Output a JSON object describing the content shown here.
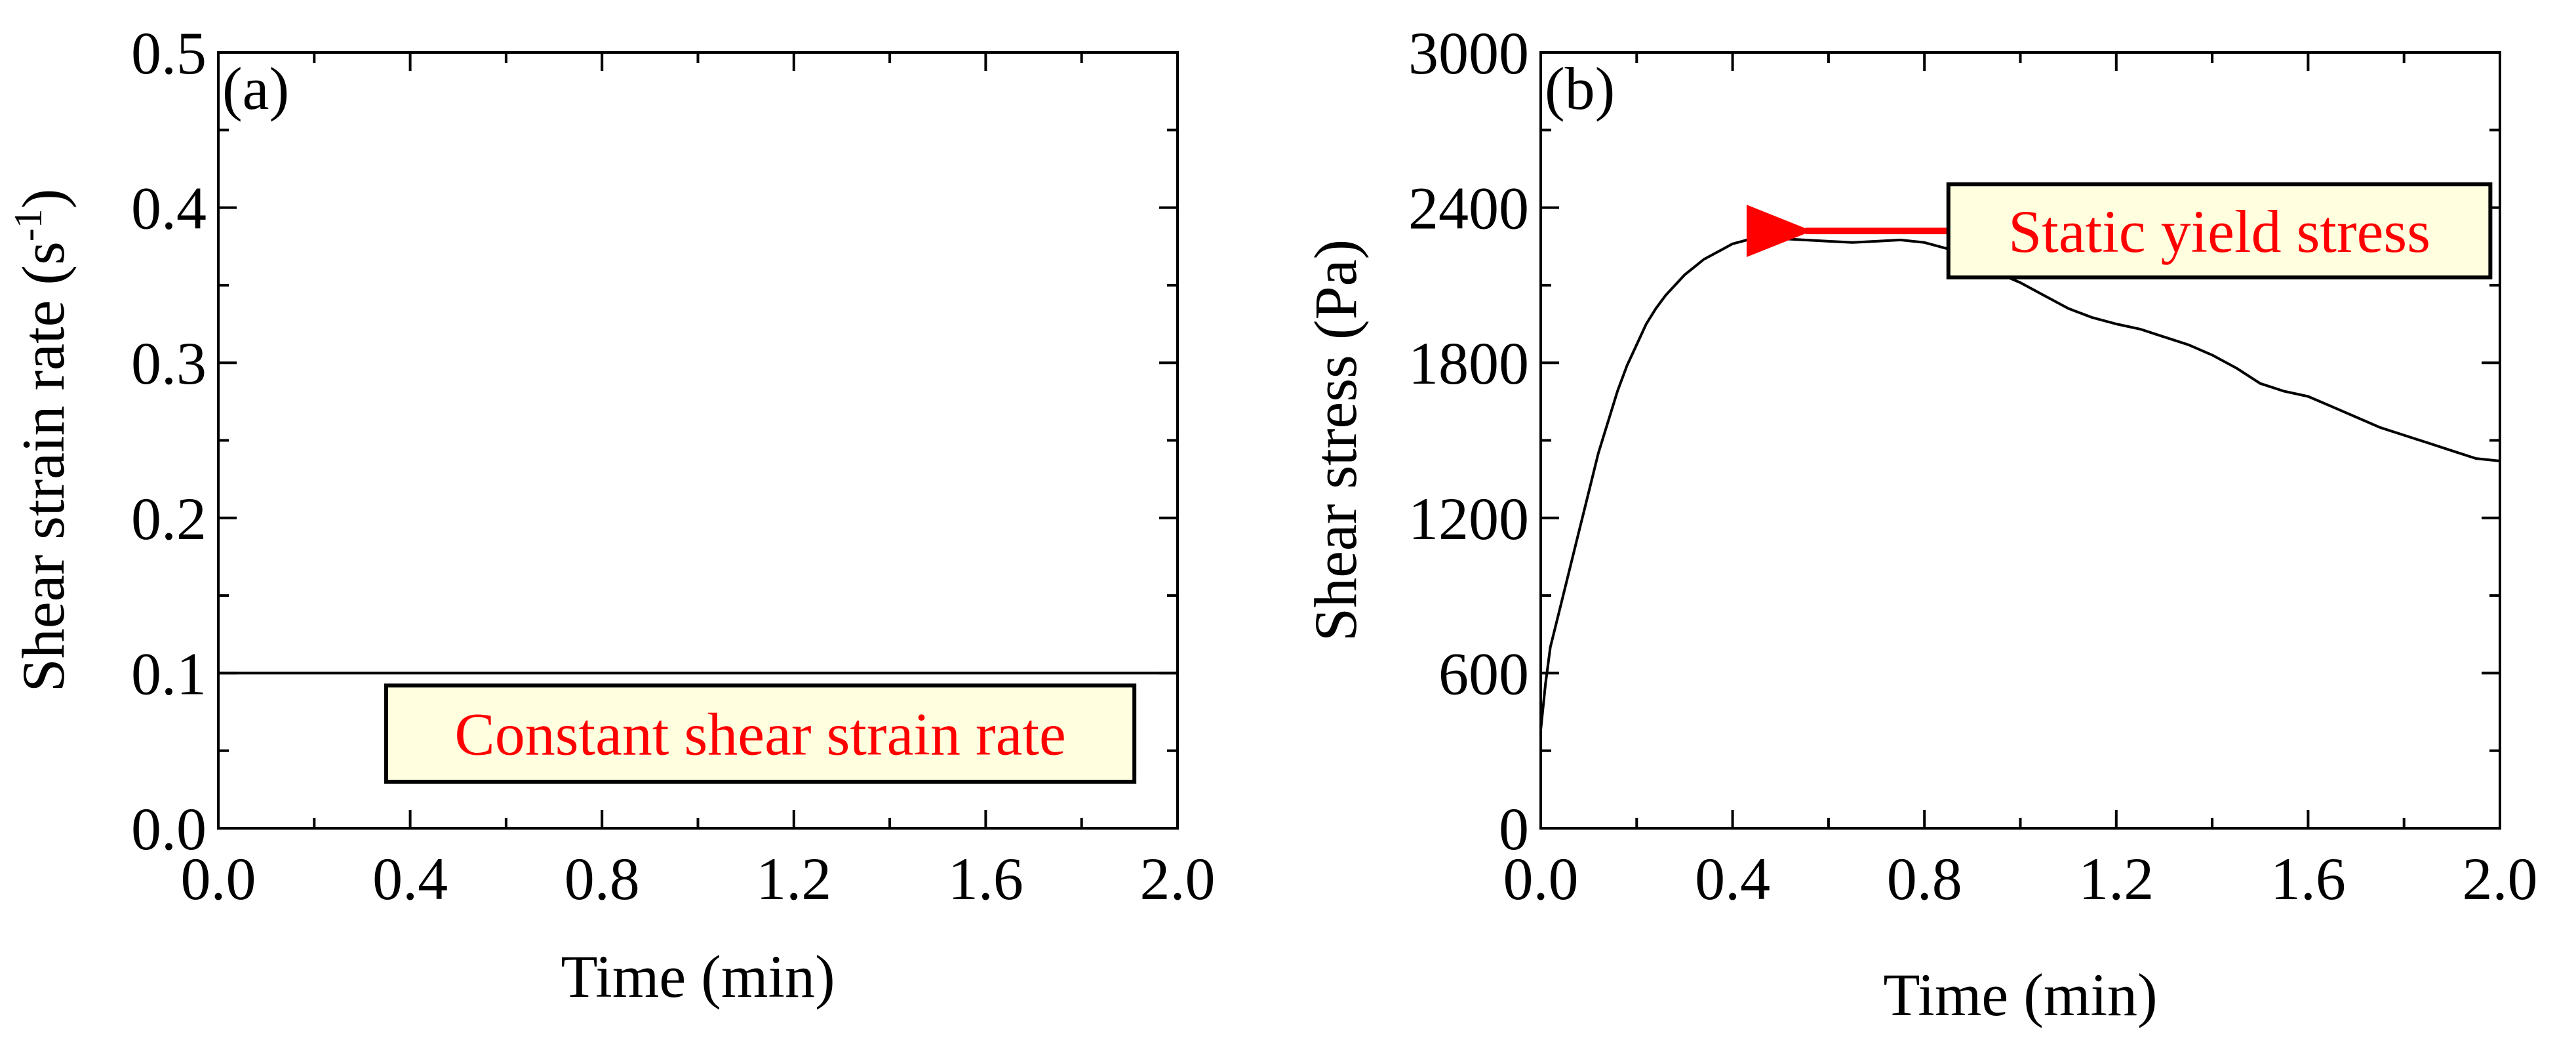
{
  "colors": {
    "axis": "#000000",
    "line": "#000000",
    "annotation_text": "#ff0000",
    "annotation_arrow": "#ff0000",
    "annotation_box_fill": "#ffffe0",
    "background": "#ffffff"
  },
  "chart_data": [
    {
      "type": "line",
      "panel_label": "(a)",
      "xlabel": "Time (min)",
      "ylabel": "Shear strain rate (s",
      "ylabel_superscript": "-1",
      "ylabel_suffix": ")",
      "xlim": [
        0.0,
        2.0
      ],
      "ylim": [
        0.0,
        0.5
      ],
      "xticks": [
        0.0,
        0.4,
        0.8,
        1.2,
        1.6,
        2.0
      ],
      "xtick_labels": [
        "0.0",
        "0.4",
        "0.8",
        "1.2",
        "1.6",
        "2.0"
      ],
      "yticks": [
        0.0,
        0.1,
        0.2,
        0.3,
        0.4,
        0.5
      ],
      "ytick_labels": [
        "0.0",
        "0.1",
        "0.2",
        "0.3",
        "0.4",
        "0.5"
      ],
      "grid": false,
      "series": [
        {
          "name": "Shear strain rate",
          "x": [
            0.0,
            2.0
          ],
          "y": [
            0.1,
            0.1
          ]
        }
      ],
      "annotation": {
        "text": "Constant shear strain rate",
        "x_range": [
          0.35,
          1.91
        ],
        "y_range": [
          0.03,
          0.092
        ]
      }
    },
    {
      "type": "line",
      "panel_label": "(b)",
      "xlabel": "Time (min)",
      "ylabel": "Shear stress (Pa)",
      "xlim": [
        0.0,
        2.0
      ],
      "ylim": [
        0,
        3000
      ],
      "xticks": [
        0.0,
        0.4,
        0.8,
        1.2,
        1.6,
        2.0
      ],
      "xtick_labels": [
        "0.0",
        "0.4",
        "0.8",
        "1.2",
        "1.6",
        "2.0"
      ],
      "yticks": [
        0,
        600,
        1200,
        1800,
        2400,
        3000
      ],
      "ytick_labels": [
        "0",
        "600",
        "1200",
        "1800",
        "2400",
        "3000"
      ],
      "grid": false,
      "series": [
        {
          "name": "Shear stress",
          "x": [
            0.0,
            0.01,
            0.02,
            0.04,
            0.06,
            0.08,
            0.1,
            0.12,
            0.14,
            0.16,
            0.18,
            0.2,
            0.22,
            0.24,
            0.26,
            0.28,
            0.3,
            0.32,
            0.34,
            0.36,
            0.38,
            0.4,
            0.42,
            0.44,
            0.46,
            0.48,
            0.5,
            0.55,
            0.6,
            0.65,
            0.7,
            0.75,
            0.8,
            0.85,
            0.9,
            0.95,
            1.0,
            1.05,
            1.1,
            1.15,
            1.2,
            1.25,
            1.3,
            1.35,
            1.4,
            1.45,
            1.5,
            1.55,
            1.6,
            1.65,
            1.7,
            1.75,
            1.8,
            1.85,
            1.9,
            1.95,
            2.0
          ],
          "y": [
            380,
            560,
            700,
            850,
            1000,
            1150,
            1300,
            1450,
            1570,
            1690,
            1790,
            1870,
            1950,
            2010,
            2060,
            2100,
            2140,
            2170,
            2200,
            2220,
            2240,
            2260,
            2270,
            2280,
            2290,
            2285,
            2280,
            2275,
            2270,
            2265,
            2270,
            2275,
            2265,
            2240,
            2200,
            2150,
            2110,
            2060,
            2010,
            1975,
            1950,
            1930,
            1900,
            1870,
            1830,
            1780,
            1720,
            1690,
            1670,
            1630,
            1590,
            1550,
            1520,
            1490,
            1460,
            1430,
            1420
          ]
        }
      ],
      "annotation": {
        "text": "Static yield stress",
        "arrow_from": [
          0.85,
          2310
        ],
        "arrow_to": [
          0.47,
          2310
        ],
        "x_range": [
          0.85,
          1.98
        ],
        "y_range": [
          2130,
          2490
        ]
      }
    }
  ]
}
